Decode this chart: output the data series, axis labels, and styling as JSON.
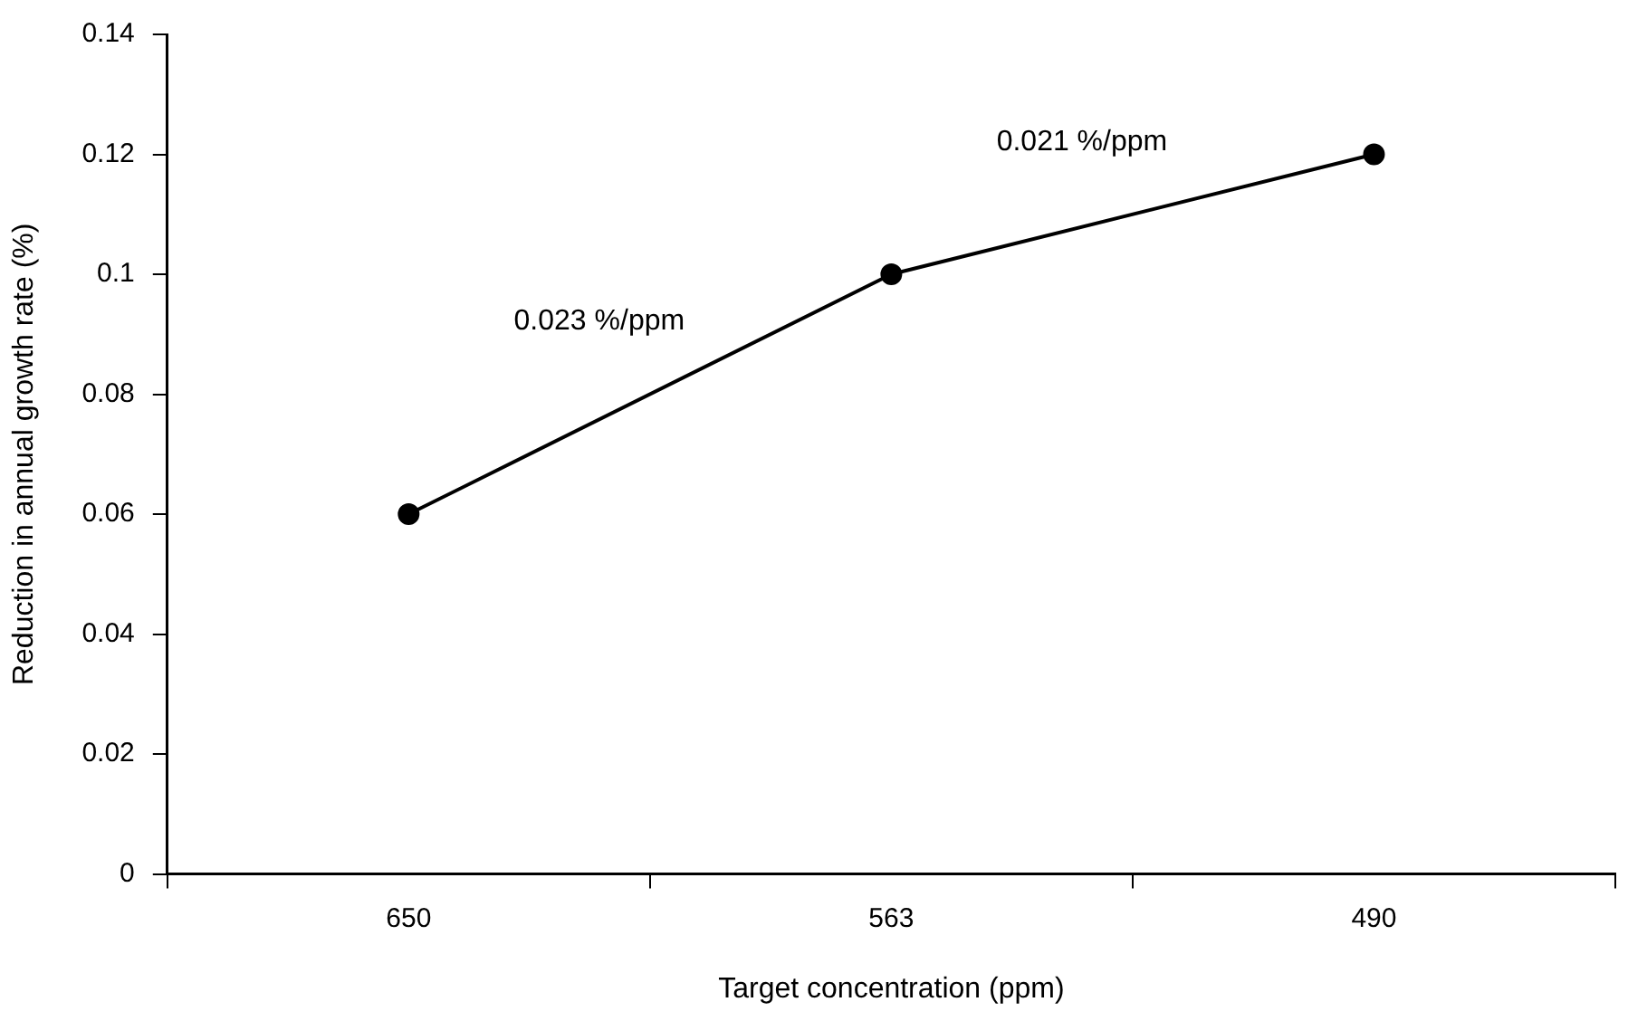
{
  "chart_data": {
    "type": "line",
    "xlabel": "Target concentration (ppm)",
    "ylabel": "Reduction in annual growth rate (%)",
    "categories": [
      "650",
      "563",
      "490"
    ],
    "series": [
      {
        "color": "#000000",
        "values": [
          0.06,
          0.1,
          0.12
        ]
      }
    ],
    "ylim": [
      0,
      0.14
    ],
    "yticks": [
      0,
      0.02,
      0.04,
      0.06,
      0.08,
      0.1,
      0.12,
      0.14
    ],
    "grid": false,
    "legend": false,
    "marker": "circle",
    "line_style": "solid",
    "annotations": [
      "0.023 %/ppm",
      "0.021 %/ppm"
    ]
  }
}
